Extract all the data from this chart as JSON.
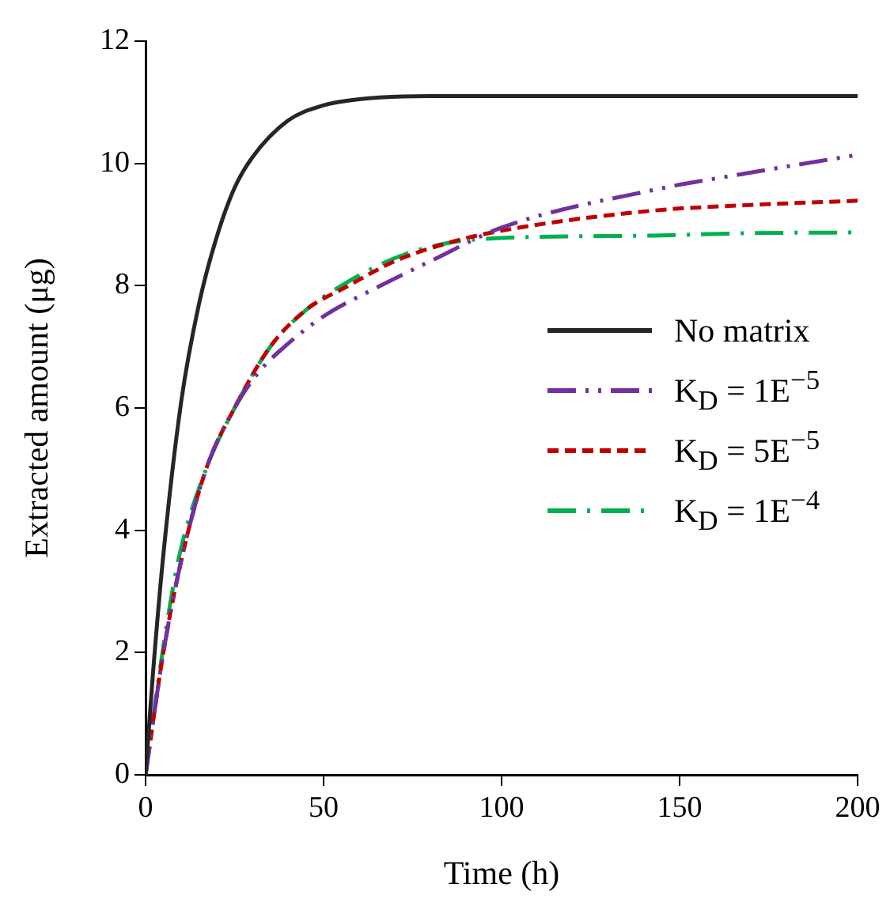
{
  "chart_data": {
    "type": "line",
    "xlabel": "Time (h)",
    "ylabel": "Extracted amount (μg)",
    "xlim": [
      0,
      200
    ],
    "xticks": [
      0,
      50,
      100,
      150,
      200
    ],
    "ylim": [
      0,
      12
    ],
    "yticks": [
      0,
      2,
      4,
      6,
      8,
      10,
      12
    ],
    "grid": false,
    "legend": "right",
    "marker": "none",
    "series": [
      {
        "name": "No matrix",
        "color": "#262626",
        "line_style": "solid",
        "x": [
          0,
          2,
          5,
          10,
          15,
          20,
          25,
          30,
          40,
          50,
          60,
          80,
          100,
          150,
          200
        ],
        "values": [
          0,
          1.6,
          3.6,
          6.1,
          7.7,
          8.8,
          9.6,
          10.1,
          10.7,
          10.95,
          11.05,
          11.1,
          11.1,
          11.1,
          11.1
        ]
      },
      {
        "name": "K$_{D}$ = 1E$^{−5}$",
        "color": "#7030a0",
        "line_style": "dashed",
        "x": [
          0,
          5,
          10,
          17,
          25,
          32,
          39,
          50,
          66,
          80,
          100,
          143,
          170,
          200
        ],
        "values": [
          0,
          2.0,
          3.5,
          5.0,
          6.0,
          6.6,
          7.0,
          7.5,
          8.0,
          8.4,
          8.95,
          9.57,
          9.85,
          10.14
        ]
      },
      {
        "name": "K$_{D}$ = 5E$^{−5}$",
        "color": "#c00000",
        "line_style": "dashed",
        "x": [
          0,
          5,
          10,
          17,
          25,
          35,
          45,
          57,
          70,
          85,
          100,
          143,
          170,
          200
        ],
        "values": [
          0,
          2.0,
          3.5,
          5.0,
          6.0,
          7.0,
          7.6,
          8.0,
          8.4,
          8.7,
          8.9,
          9.23,
          9.32,
          9.39
        ]
      },
      {
        "name": "K$_{D}$ = 1E$^{−4}$",
        "color": "#00b050",
        "line_style": "dashed",
        "x": [
          0,
          5,
          9.3,
          17,
          25,
          35,
          45,
          55,
          70,
          85,
          100,
          143,
          170,
          200
        ],
        "values": [
          0,
          2.1,
          3.54,
          5.0,
          6.0,
          7.0,
          7.6,
          8.0,
          8.45,
          8.7,
          8.78,
          8.82,
          8.86,
          8.87
        ]
      }
    ]
  }
}
